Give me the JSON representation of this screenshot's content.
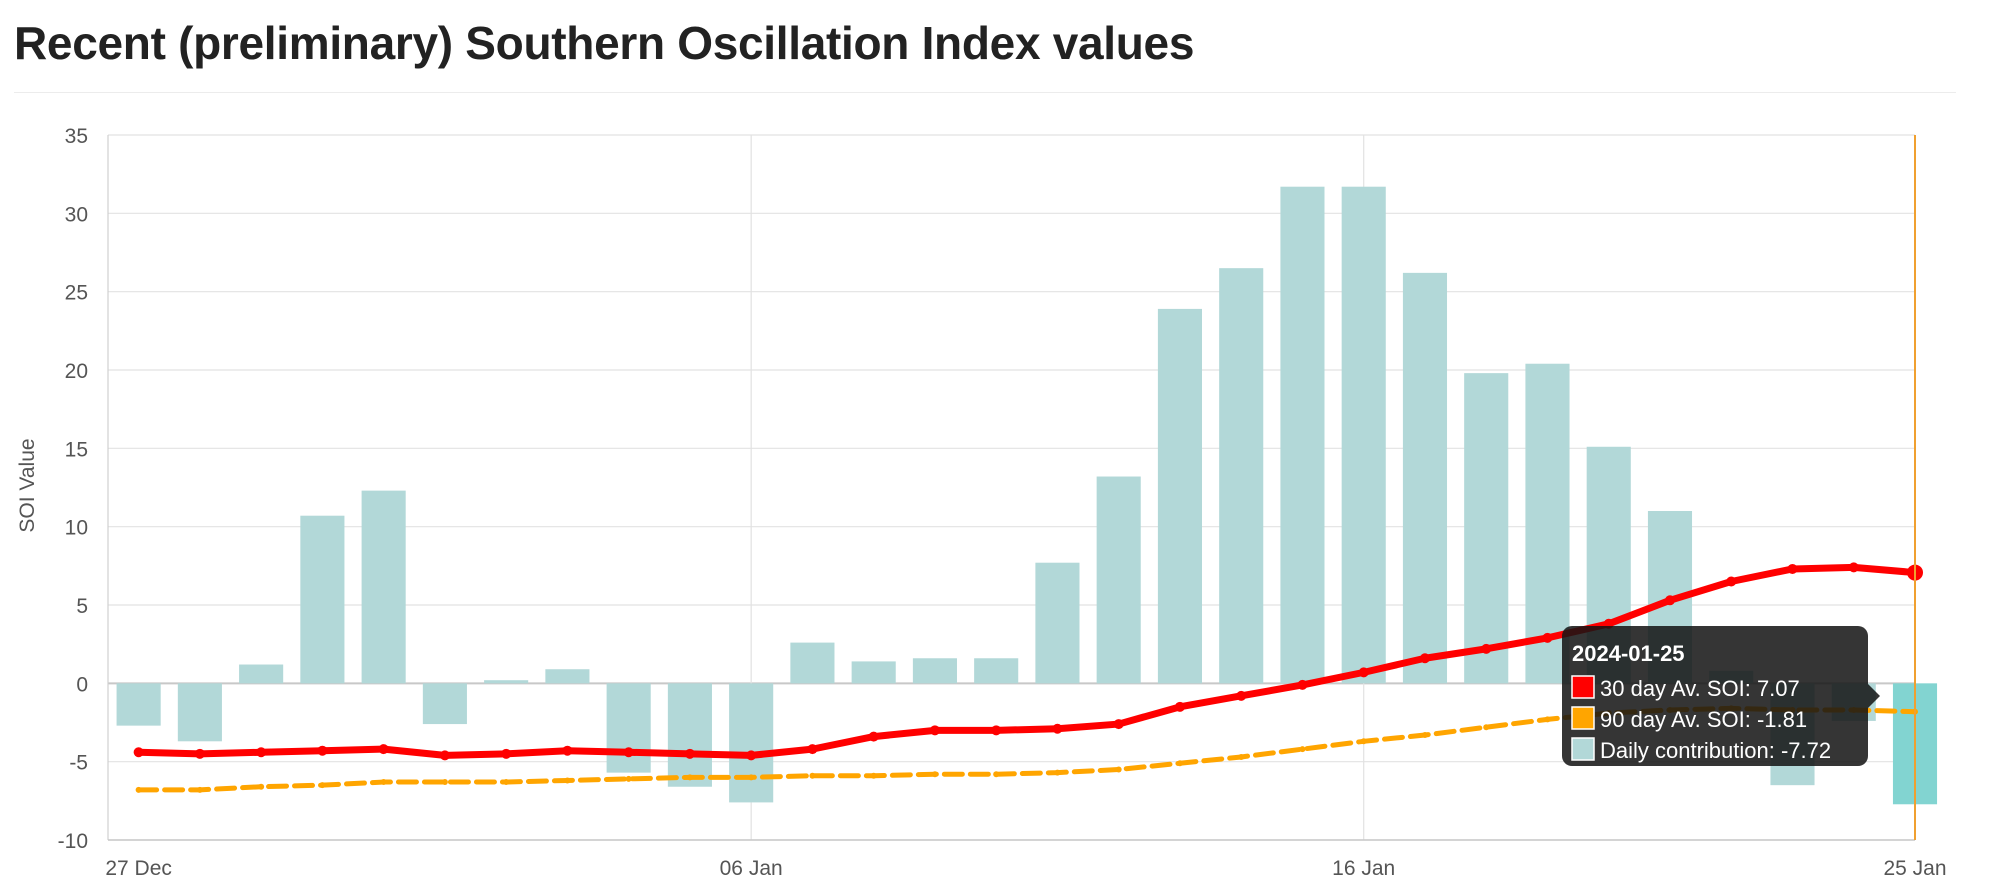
{
  "page": {
    "title": "Recent (preliminary) Southern Oscillation Index values"
  },
  "chart_data": {
    "type": "bar",
    "ylabel": "SOI Value",
    "xlabel": "",
    "ylim": [
      -10,
      35
    ],
    "yticks": [
      -10,
      -5,
      0,
      5,
      10,
      15,
      20,
      25,
      30,
      35
    ],
    "x_tick_labels": [
      "27 Dec",
      "06 Jan",
      "16 Jan",
      "25 Jan"
    ],
    "grid": true,
    "x": [
      "2023-12-27",
      "2023-12-28",
      "2023-12-29",
      "2023-12-30",
      "2023-12-31",
      "2024-01-01",
      "2024-01-02",
      "2024-01-03",
      "2024-01-04",
      "2024-01-05",
      "2024-01-06",
      "2024-01-07",
      "2024-01-08",
      "2024-01-09",
      "2024-01-10",
      "2024-01-11",
      "2024-01-12",
      "2024-01-13",
      "2024-01-14",
      "2024-01-15",
      "2024-01-16",
      "2024-01-17",
      "2024-01-18",
      "2024-01-19",
      "2024-01-20",
      "2024-01-21",
      "2024-01-22",
      "2024-01-23",
      "2024-01-24",
      "2024-01-25"
    ],
    "series": [
      {
        "name": "Daily contribution",
        "kind": "bar",
        "color": "#b2d8d8",
        "highlight_color": "#82d4d1",
        "values": [
          -2.7,
          -3.7,
          1.2,
          10.7,
          12.3,
          -2.6,
          0.2,
          0.9,
          -5.7,
          -6.6,
          -7.6,
          2.6,
          1.4,
          1.6,
          1.6,
          7.7,
          13.2,
          23.9,
          26.5,
          31.7,
          31.7,
          26.2,
          19.8,
          20.4,
          15.1,
          11.0,
          0.8,
          -6.5,
          -2.4,
          -7.72
        ]
      },
      {
        "name": "30 day Av. SOI",
        "kind": "line",
        "color": "#ff0000",
        "values": [
          -4.4,
          -4.5,
          -4.4,
          -4.3,
          -4.2,
          -4.6,
          -4.5,
          -4.3,
          -4.4,
          -4.5,
          -4.6,
          -4.2,
          -3.4,
          -3.0,
          -3.0,
          -2.9,
          -2.6,
          -1.5,
          -0.8,
          -0.1,
          0.7,
          1.6,
          2.2,
          2.9,
          3.8,
          5.3,
          6.5,
          7.3,
          7.4,
          7.07
        ]
      },
      {
        "name": "90 day Av. SOI",
        "kind": "line",
        "dashed": true,
        "color": "#ffa500",
        "values": [
          -6.8,
          -6.8,
          -6.6,
          -6.5,
          -6.3,
          -6.3,
          -6.3,
          -6.2,
          -6.1,
          -6.0,
          -6.0,
          -5.9,
          -5.9,
          -5.8,
          -5.8,
          -5.7,
          -5.5,
          -5.1,
          -4.7,
          -4.2,
          -3.7,
          -3.3,
          -2.8,
          -2.3,
          -1.9,
          -1.7,
          -1.6,
          -1.7,
          -1.7,
          -1.81
        ]
      }
    ],
    "tooltip": {
      "date": "2024-01-25",
      "lines": [
        {
          "label": "30 day Av. SOI: 7.07",
          "color": "#ff0000"
        },
        {
          "label": "90 day Av. SOI: -1.81",
          "color": "#ffa500"
        },
        {
          "label": "Daily contribution: -7.72",
          "color": "#b2d8d8"
        }
      ]
    },
    "crosshair_color": "#f0a030"
  }
}
